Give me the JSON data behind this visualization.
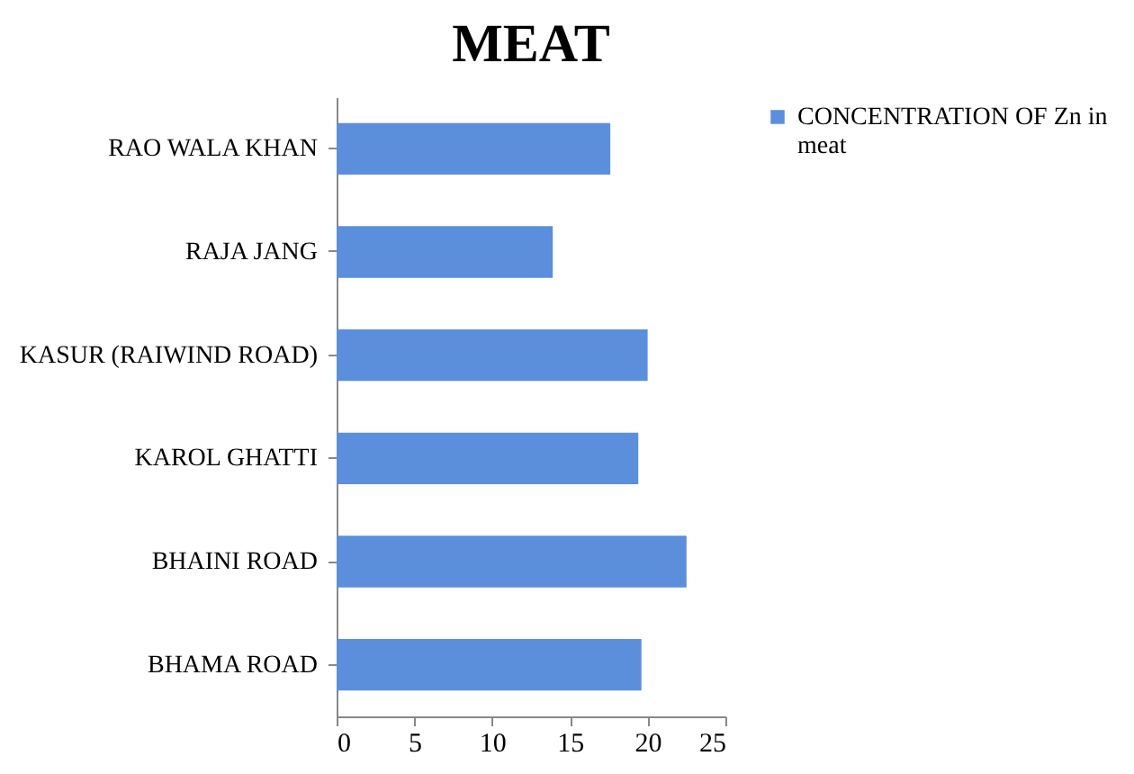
{
  "chart_data": {
    "type": "bar",
    "orientation": "horizontal",
    "title": "MEAT",
    "categories": [
      "RAO WALA KHAN",
      "RAJA JANG",
      "KASUR (RAIWIND ROAD)",
      "KAROL GHATTI",
      "BHAINI ROAD",
      "BHAMA ROAD"
    ],
    "series": [
      {
        "name": "CONCENTRATION OF Zn in meat",
        "color": "#5b8fdc",
        "values": [
          17.6,
          13.9,
          20.0,
          19.4,
          22.5,
          19.6
        ]
      }
    ],
    "xlim": [
      0,
      25
    ],
    "xticks": [
      0,
      5,
      10,
      15,
      20,
      25
    ],
    "grid": false,
    "legend": "right"
  }
}
